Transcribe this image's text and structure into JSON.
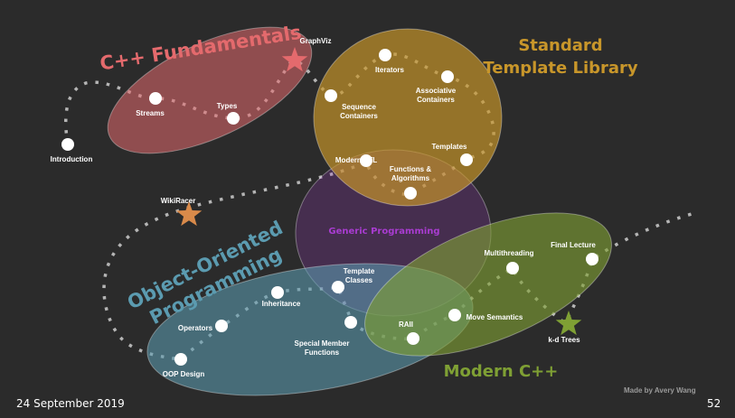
{
  "colors": {
    "background": "#2b2b2b",
    "node": "#ffffff",
    "path": "#b5b5b5",
    "cpp_fundamentals": "#e46a6d",
    "stl": "#c8962a",
    "generic": "#a93cd1",
    "oop": "#5b9bb0",
    "modern_cpp": "#7fa034"
  },
  "regions": [
    {
      "id": "cpp-fundamentals",
      "label": "C++ Fundamentals"
    },
    {
      "id": "stl",
      "label_lines": [
        "Standard",
        "Template Library"
      ]
    },
    {
      "id": "generic-programming",
      "label": "Generic Programming"
    },
    {
      "id": "oop",
      "label_lines": [
        "Object-Oriented",
        "Programming"
      ]
    },
    {
      "id": "modern-cpp",
      "label": "Modern C++"
    }
  ],
  "topics": [
    {
      "id": "introduction",
      "label_lines": [
        "Introduction"
      ]
    },
    {
      "id": "streams",
      "label_lines": [
        "Streams"
      ]
    },
    {
      "id": "types",
      "label_lines": [
        "Types"
      ]
    },
    {
      "id": "sequence-containers",
      "label_lines": [
        "Sequence",
        "Containers"
      ]
    },
    {
      "id": "iterators",
      "label_lines": [
        "Iterators"
      ]
    },
    {
      "id": "associative-containers",
      "label_lines": [
        "Associative",
        "Containers"
      ]
    },
    {
      "id": "templates",
      "label_lines": [
        "Templates"
      ]
    },
    {
      "id": "functions-algorithms",
      "label_lines": [
        "Functions &",
        "Algorithms"
      ]
    },
    {
      "id": "modern-stl",
      "label_lines": [
        "Modern STL"
      ]
    },
    {
      "id": "operators",
      "label_lines": [
        "Operators"
      ]
    },
    {
      "id": "inheritance",
      "label_lines": [
        "Inheritance"
      ]
    },
    {
      "id": "template-classes",
      "label_lines": [
        "Template",
        "Classes"
      ]
    },
    {
      "id": "special-member-functions",
      "label_lines": [
        "Special Member",
        "Functions"
      ]
    },
    {
      "id": "oop-design",
      "label_lines": [
        "OOP Design"
      ]
    },
    {
      "id": "raii",
      "label_lines": [
        "RAII"
      ]
    },
    {
      "id": "move-semantics",
      "label_lines": [
        "Move Semantics"
      ]
    },
    {
      "id": "multithreading",
      "label_lines": [
        "Multithreading"
      ]
    },
    {
      "id": "final-lecture",
      "label_lines": [
        "Final Lecture"
      ]
    }
  ],
  "assignments": [
    {
      "id": "graphviz",
      "label": "GraphViz",
      "color": "#e46a6d"
    },
    {
      "id": "wikiracer",
      "label": "WikiRacer",
      "color": "#d98a4a"
    },
    {
      "id": "kd-trees",
      "label": "k-d Trees",
      "color": "#7fa034"
    }
  ],
  "footer": {
    "date": "24 September 2019",
    "credit": "Made by Avery Wang",
    "page_number": "52"
  }
}
